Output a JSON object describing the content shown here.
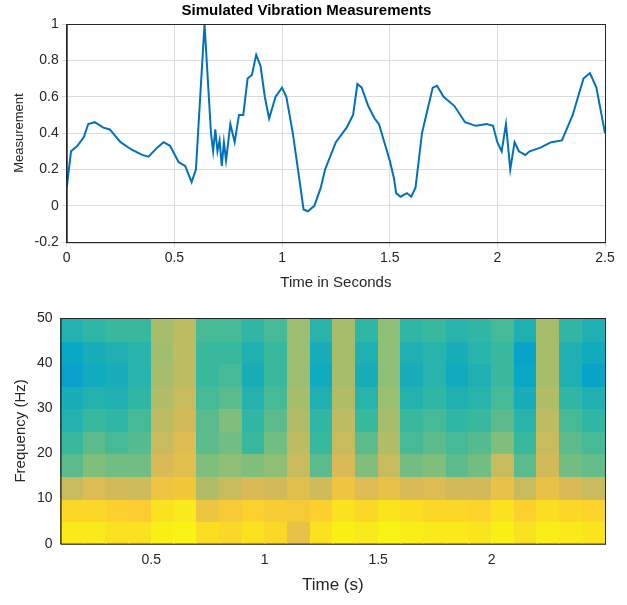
{
  "chart_data": [
    {
      "type": "line",
      "title": "Simulated Vibration Measurements",
      "x_label": "Time in Seconds",
      "y_label": "Measurement",
      "grid": true,
      "xlim": [
        0,
        2.5
      ],
      "xticks": [
        0,
        0.5,
        1,
        1.5,
        2,
        2.5
      ],
      "ylim": [
        -0.2,
        1
      ],
      "yticks": [
        -0.2,
        0,
        0.2,
        0.4,
        0.6,
        0.8,
        1
      ],
      "series": [
        {
          "color": "#0072bd",
          "x": [
            0,
            0.02,
            0.05,
            0.08,
            0.1,
            0.13,
            0.17,
            0.2,
            0.25,
            0.3,
            0.35,
            0.38,
            0.42,
            0.45,
            0.48,
            0.52,
            0.55,
            0.58,
            0.6,
            0.62,
            0.64,
            0.66,
            0.67,
            0.68,
            0.69,
            0.7,
            0.71,
            0.72,
            0.73,
            0.74,
            0.76,
            0.78,
            0.8,
            0.82,
            0.84,
            0.86,
            0.88,
            0.9,
            0.92,
            0.94,
            0.97,
            1.0,
            1.02,
            1.05,
            1.08,
            1.1,
            1.12,
            1.15,
            1.18,
            1.2,
            1.25,
            1.3,
            1.33,
            1.35,
            1.37,
            1.4,
            1.43,
            1.45,
            1.48,
            1.5,
            1.52,
            1.53,
            1.55,
            1.58,
            1.6,
            1.62,
            1.65,
            1.68,
            1.7,
            1.72,
            1.75,
            1.8,
            1.85,
            1.9,
            1.95,
            1.98,
            2.0,
            2.02,
            2.04,
            2.06,
            2.08,
            2.1,
            2.13,
            2.15,
            2.2,
            2.25,
            2.3,
            2.35,
            2.4,
            2.43,
            2.46,
            2.5
          ],
          "values": [
            0.1,
            0.3,
            0.33,
            0.38,
            0.45,
            0.46,
            0.43,
            0.42,
            0.35,
            0.31,
            0.28,
            0.27,
            0.32,
            0.35,
            0.33,
            0.24,
            0.22,
            0.13,
            0.2,
            0.6,
            1.0,
            0.6,
            0.4,
            0.3,
            0.42,
            0.3,
            0.36,
            0.22,
            0.35,
            0.25,
            0.45,
            0.35,
            0.5,
            0.5,
            0.7,
            0.72,
            0.83,
            0.77,
            0.6,
            0.48,
            0.6,
            0.65,
            0.6,
            0.4,
            0.15,
            -0.02,
            -0.03,
            0.0,
            0.1,
            0.2,
            0.35,
            0.43,
            0.5,
            0.67,
            0.65,
            0.55,
            0.48,
            0.45,
            0.33,
            0.25,
            0.15,
            0.07,
            0.05,
            0.07,
            0.05,
            0.1,
            0.4,
            0.55,
            0.65,
            0.66,
            0.6,
            0.55,
            0.46,
            0.44,
            0.45,
            0.44,
            0.35,
            0.3,
            0.45,
            0.2,
            0.35,
            0.3,
            0.28,
            0.3,
            0.32,
            0.35,
            0.36,
            0.5,
            0.7,
            0.73,
            0.65,
            0.4
          ]
        }
      ]
    },
    {
      "type": "heatmap",
      "x_label": "Time (s)",
      "y_label": "Frequency (Hz)",
      "grid": false,
      "xlim": [
        0.1,
        2.5
      ],
      "xticks": [
        0.5,
        1,
        1.5,
        2
      ],
      "ylim": [
        0,
        50
      ],
      "yticks": [
        0,
        10,
        20,
        30,
        40,
        50
      ],
      "x": [
        0.15,
        0.25,
        0.35,
        0.45,
        0.55,
        0.65,
        0.75,
        0.85,
        0.95,
        1.05,
        1.15,
        1.25,
        1.35,
        1.45,
        1.55,
        1.65,
        1.75,
        1.85,
        1.95,
        2.05,
        2.15,
        2.25,
        2.35,
        2.45
      ],
      "y": [
        2.5,
        7.5,
        12.5,
        17.5,
        22.5,
        27.5,
        32.5,
        37.5,
        42.5,
        47.5
      ],
      "clim": [
        0,
        1
      ],
      "cells": [
        [
          0.95,
          0.95,
          0.93,
          0.93,
          0.97,
          0.98,
          0.92,
          0.9,
          0.93,
          0.9,
          0.8,
          0.93,
          0.97,
          0.95,
          0.98,
          0.96,
          0.95,
          0.95,
          0.94,
          0.97,
          0.93,
          0.96,
          0.95,
          0.94
        ],
        [
          0.9,
          0.9,
          0.88,
          0.87,
          0.93,
          0.95,
          0.82,
          0.85,
          0.88,
          0.86,
          0.85,
          0.88,
          0.93,
          0.9,
          0.94,
          0.92,
          0.9,
          0.9,
          0.89,
          0.93,
          0.88,
          0.92,
          0.9,
          0.89
        ],
        [
          0.72,
          0.76,
          0.74,
          0.73,
          0.82,
          0.84,
          0.68,
          0.72,
          0.75,
          0.74,
          0.78,
          0.73,
          0.82,
          0.76,
          0.8,
          0.75,
          0.76,
          0.74,
          0.74,
          0.8,
          0.72,
          0.8,
          0.75,
          0.72
        ],
        [
          0.55,
          0.6,
          0.58,
          0.58,
          0.75,
          0.78,
          0.6,
          0.62,
          0.6,
          0.62,
          0.72,
          0.55,
          0.75,
          0.6,
          0.72,
          0.58,
          0.6,
          0.55,
          0.58,
          0.72,
          0.55,
          0.74,
          0.58,
          0.56
        ],
        [
          0.5,
          0.55,
          0.52,
          0.54,
          0.72,
          0.76,
          0.55,
          0.58,
          0.5,
          0.58,
          0.7,
          0.5,
          0.72,
          0.55,
          0.68,
          0.52,
          0.55,
          0.52,
          0.54,
          0.6,
          0.5,
          0.72,
          0.55,
          0.52
        ],
        [
          0.45,
          0.5,
          0.48,
          0.52,
          0.7,
          0.74,
          0.55,
          0.6,
          0.48,
          0.55,
          0.68,
          0.48,
          0.7,
          0.5,
          0.66,
          0.5,
          0.52,
          0.48,
          0.5,
          0.55,
          0.46,
          0.7,
          0.52,
          0.48
        ],
        [
          0.42,
          0.45,
          0.44,
          0.48,
          0.68,
          0.72,
          0.52,
          0.55,
          0.45,
          0.52,
          0.66,
          0.44,
          0.68,
          0.46,
          0.64,
          0.45,
          0.48,
          0.44,
          0.46,
          0.52,
          0.42,
          0.68,
          0.48,
          0.44
        ],
        [
          0.35,
          0.4,
          0.42,
          0.46,
          0.66,
          0.7,
          0.5,
          0.52,
          0.42,
          0.5,
          0.64,
          0.4,
          0.66,
          0.42,
          0.62,
          0.42,
          0.46,
          0.4,
          0.44,
          0.5,
          0.38,
          0.66,
          0.44,
          0.36
        ],
        [
          0.38,
          0.42,
          0.44,
          0.46,
          0.65,
          0.7,
          0.5,
          0.5,
          0.44,
          0.5,
          0.64,
          0.42,
          0.66,
          0.44,
          0.62,
          0.44,
          0.46,
          0.42,
          0.46,
          0.5,
          0.36,
          0.66,
          0.44,
          0.4
        ],
        [
          0.45,
          0.48,
          0.5,
          0.5,
          0.66,
          0.7,
          0.52,
          0.52,
          0.48,
          0.52,
          0.64,
          0.46,
          0.66,
          0.48,
          0.62,
          0.48,
          0.5,
          0.46,
          0.48,
          0.52,
          0.44,
          0.66,
          0.48,
          0.44
        ]
      ]
    }
  ]
}
